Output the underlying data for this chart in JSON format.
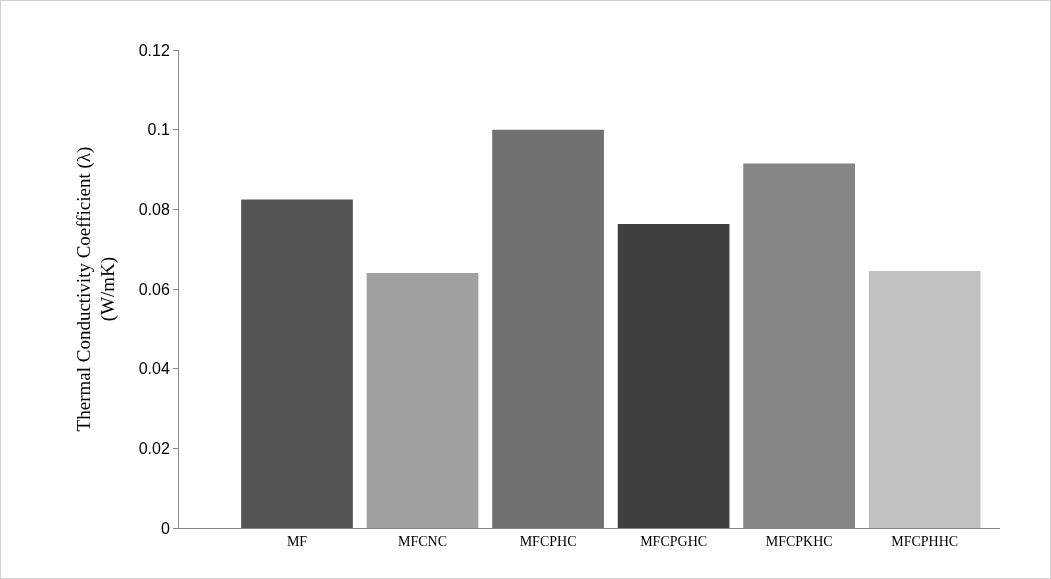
{
  "chart_data": {
    "type": "bar",
    "ylabel": "Thermal Conductivity Coefficient (λ) (W/mK)",
    "categories": [
      "MF",
      "MFCNC",
      "MFCPHC",
      "MFCPGHC",
      "MFCPKHC",
      "MFCPHHC"
    ],
    "values": [
      0.0825,
      0.064,
      0.1,
      0.0763,
      0.0915,
      0.0645
    ],
    "colors": [
      "#555555",
      "#a0a0a0",
      "#707070",
      "#404040",
      "#858585",
      "#c0c0c0"
    ],
    "ylim": [
      0,
      0.12
    ],
    "yticks": [
      0,
      {
        "value": 0.02,
        "label": "0.02"
      },
      {
        "value": 0.04,
        "label": "0.04"
      },
      {
        "value": 0.06,
        "label": "0.06"
      },
      {
        "value": 0.08,
        "label": "0.08"
      },
      {
        "value": 0.1,
        "label": "0.1"
      },
      {
        "value": 0.12,
        "label": "0.12"
      }
    ],
    "grid": false
  }
}
